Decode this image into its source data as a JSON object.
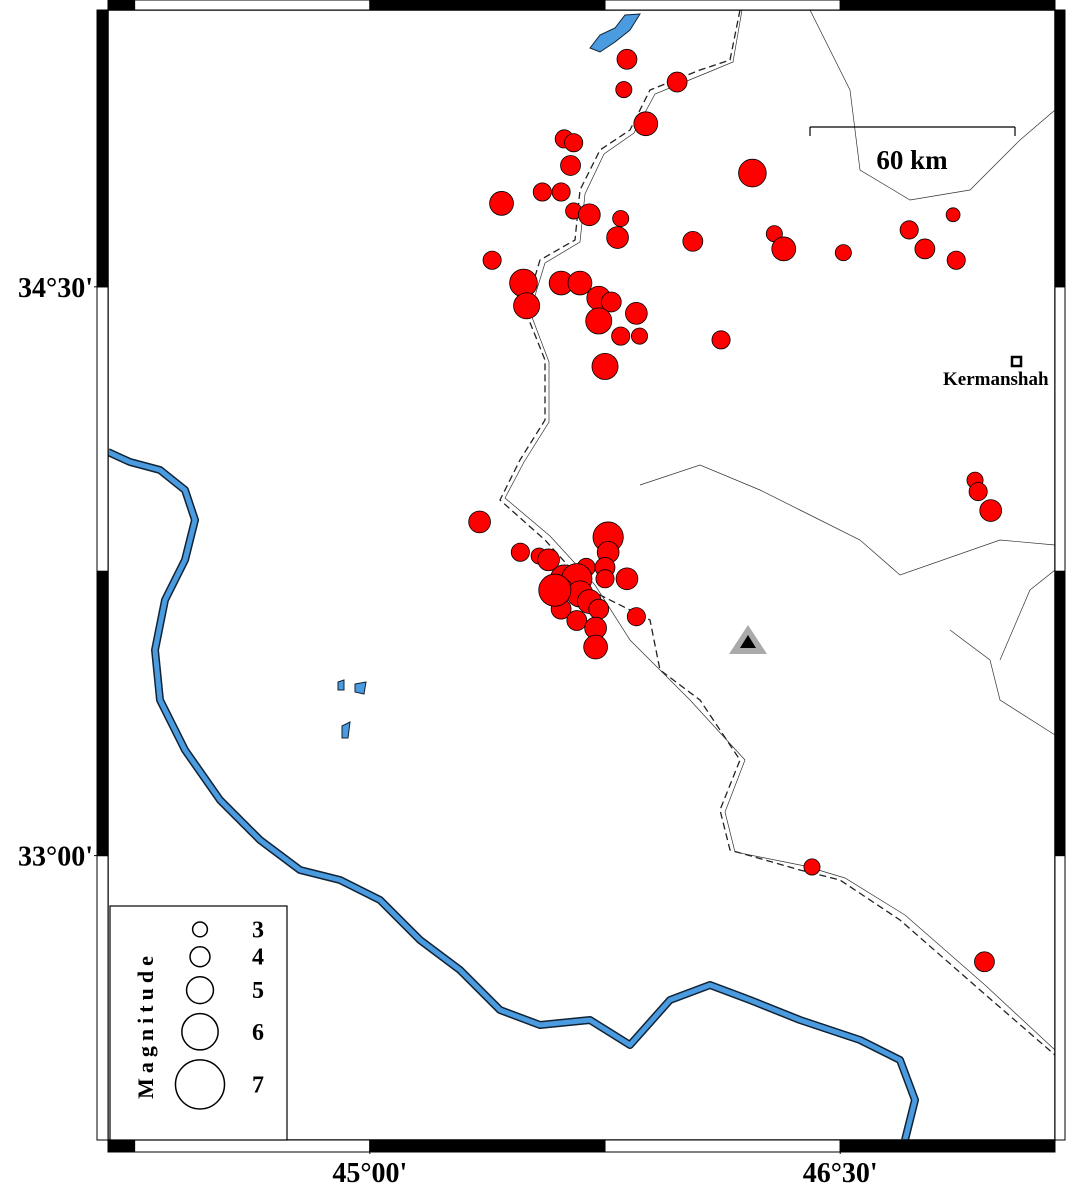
{
  "chart_data": {
    "type": "scatter",
    "x": [
      45.82,
      45.81,
      45.98,
      45.88,
      45.62,
      45.65,
      45.64,
      46.22,
      45.55,
      45.61,
      45.42,
      45.65,
      45.7,
      45.8,
      45.79,
      46.03,
      46.29,
      46.32,
      46.51,
      46.72,
      46.86,
      46.77,
      46.87,
      45.39,
      45.49,
      45.61,
      45.67,
      45.5,
      45.73,
      45.77,
      45.85,
      45.73,
      45.8,
      45.86,
      46.12,
      45.75,
      46.93,
      46.94,
      46.98,
      45.35,
      45.76,
      45.48,
      45.54,
      45.57,
      45.76,
      45.69,
      45.75,
      45.82,
      45.62,
      45.66,
      45.61,
      45.67,
      45.75,
      45.61,
      45.7,
      45.73,
      45.66,
      45.72,
      45.72,
      45.85,
      46.41,
      46.96,
      45.59
    ],
    "values": [
      35.1,
      35.02,
      35.04,
      34.93,
      34.89,
      34.88,
      34.82,
      34.8,
      34.75,
      34.75,
      34.72,
      34.7,
      34.69,
      34.68,
      34.63,
      34.62,
      34.64,
      34.6,
      34.59,
      34.65,
      34.69,
      34.6,
      34.57,
      34.57,
      34.51,
      34.51,
      34.51,
      34.45,
      34.47,
      34.46,
      34.43,
      34.41,
      34.37,
      34.37,
      34.36,
      34.29,
      33.99,
      33.96,
      33.91,
      33.88,
      33.84,
      33.8,
      33.79,
      33.78,
      33.8,
      33.76,
      33.76,
      33.73,
      33.73,
      33.73,
      33.7,
      33.69,
      33.73,
      33.65,
      33.67,
      33.65,
      33.62,
      33.6,
      33.55,
      33.63,
      32.97,
      32.72,
      33.7
    ],
    "magnitudes": [
      4.0,
      3.3,
      4.0,
      4.6,
      3.7,
      3.7,
      4.0,
      5.1,
      3.7,
      3.7,
      4.6,
      3.3,
      4.3,
      3.3,
      4.3,
      4.0,
      3.3,
      4.6,
      3.3,
      3.7,
      2.8,
      4.0,
      3.7,
      3.7,
      5.1,
      4.6,
      4.6,
      4.9,
      4.6,
      4.0,
      4.3,
      4.9,
      3.7,
      3.3,
      3.7,
      4.9,
      3.3,
      3.7,
      4.3,
      4.3,
      5.4,
      3.7,
      3.3,
      4.3,
      4.3,
      3.7,
      4.0,
      4.3,
      5.1,
      5.4,
      4.6,
      4.9,
      3.7,
      4.0,
      4.6,
      4.0,
      4.0,
      4.3,
      4.6,
      3.7,
      3.3,
      4.0,
      5.6
    ],
    "color": "#ff0000",
    "xlim": [
      44.165,
      47.185
    ],
    "ylim": [
      32.25,
      35.23
    ],
    "xticks": [
      {
        "value": 45,
        "label": "45°00'"
      },
      {
        "value": 46.5,
        "label": "46°30'"
      }
    ],
    "yticks": [
      {
        "value": 33,
        "label": "33°00'"
      },
      {
        "value": 34.5,
        "label": "34°30'"
      }
    ],
    "legend_title": "Magnitude",
    "legend_sizes": [
      3,
      4,
      5,
      6,
      7
    ],
    "scale_label": "60 km",
    "city_label": "Kermanshah"
  }
}
